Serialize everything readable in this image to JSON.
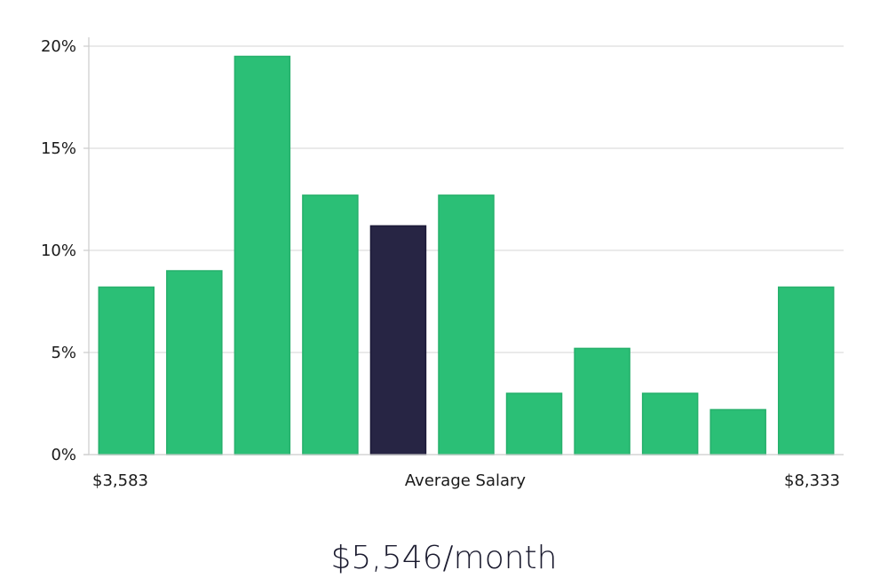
{
  "chart_data": {
    "type": "bar",
    "values": [
      8.2,
      9.0,
      19.5,
      12.7,
      11.2,
      12.7,
      3.0,
      5.2,
      3.0,
      2.2,
      8.2
    ],
    "highlight_index": 4,
    "bar_color": "#2bbf76",
    "highlight_color": "#272544",
    "ylim": [
      0,
      20
    ],
    "yticks": [
      {
        "value": 0,
        "label": "0%"
      },
      {
        "value": 5,
        "label": "5%"
      },
      {
        "value": 10,
        "label": "10%"
      },
      {
        "value": 15,
        "label": "15%"
      },
      {
        "value": 20,
        "label": "20%"
      }
    ],
    "x_min_label": "$3,583",
    "x_max_label": "$8,333",
    "xlabel": "Average Salary",
    "grid": true
  },
  "summary": {
    "average_label": "$5,546/month"
  }
}
